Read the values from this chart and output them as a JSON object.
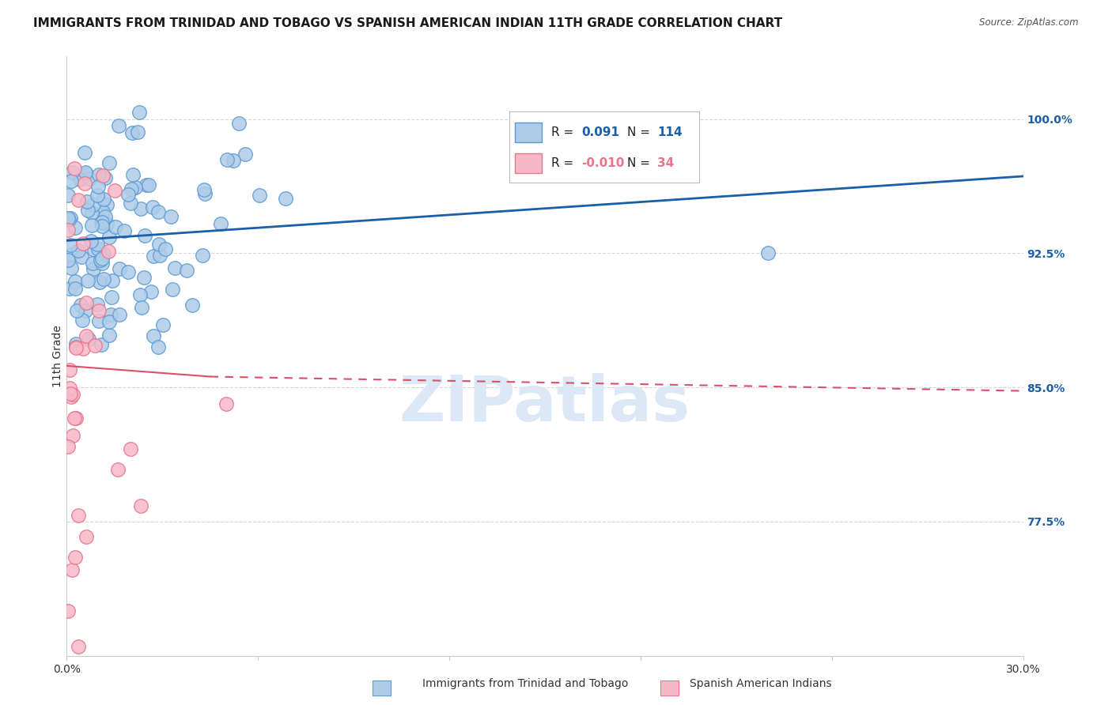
{
  "title": "IMMIGRANTS FROM TRINIDAD AND TOBAGO VS SPANISH AMERICAN INDIAN 11TH GRADE CORRELATION CHART",
  "source_text": "Source: ZipAtlas.com",
  "ylabel": "11th Grade",
  "xlim": [
    0.0,
    30.0
  ],
  "ylim": [
    70.0,
    103.5
  ],
  "yticks": [
    77.5,
    85.0,
    92.5,
    100.0
  ],
  "ytick_labels": [
    "77.5%",
    "85.0%",
    "92.5%",
    "100.0%"
  ],
  "blue_color": "#5b9bd5",
  "pink_color": "#e8768a",
  "blue_fill": "#aecce8",
  "pink_fill": "#f7b8c8",
  "watermark": "ZIPatlas",
  "watermark_color": "#dce8f5",
  "blue_line_color": "#1a5fa8",
  "pink_line_color": "#d9506a",
  "background_color": "#ffffff",
  "grid_color": "#cccccc",
  "title_fontsize": 11,
  "axis_label_fontsize": 10,
  "tick_fontsize": 10,
  "blue_R": 0.091,
  "pink_R": -0.01,
  "blue_N": 114,
  "pink_N": 34,
  "blue_line_x0": 0.0,
  "blue_line_x1": 30.0,
  "blue_line_y0": 93.2,
  "blue_line_y1": 96.8,
  "pink_line_x0": 0.0,
  "pink_line_x1": 4.5,
  "pink_line_y0": 86.2,
  "pink_line_y1": 85.6,
  "pink_dash_x0": 4.5,
  "pink_dash_x1": 30.0,
  "pink_dash_y0": 85.6,
  "pink_dash_y1": 84.8
}
